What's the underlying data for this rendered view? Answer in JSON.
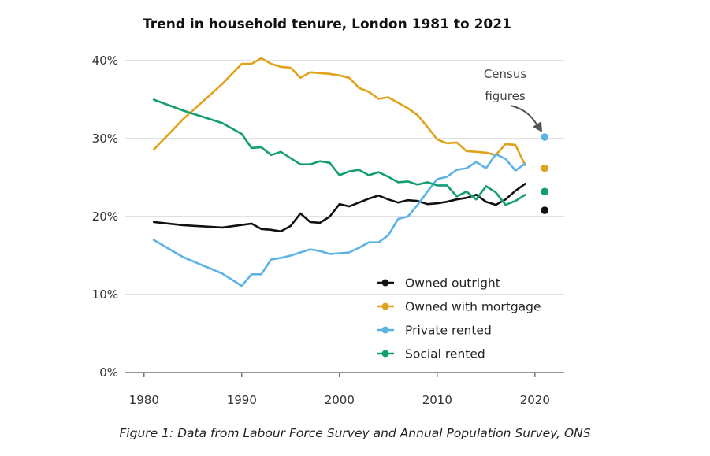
{
  "chart_data": {
    "type": "line",
    "title": "Trend in household tenure, London 1981 to 2021",
    "xlabel": "",
    "ylabel": "",
    "xlim": [
      1978,
      2023
    ],
    "ylim": [
      0,
      40
    ],
    "x_ticks": [
      1980,
      1990,
      2000,
      2010,
      2020
    ],
    "x_tick_labels": [
      "1980",
      "1990",
      "2000",
      "2010",
      "2020"
    ],
    "y_ticks": [
      0,
      10,
      20,
      30,
      40
    ],
    "y_tick_labels": [
      "0%",
      "10%",
      "20%",
      "30%",
      "40%"
    ],
    "grid": "horizontal",
    "legend_position": "bottom-right",
    "annotation": {
      "lines": [
        "Census",
        "figures"
      ],
      "points_to": "census points, 2021"
    },
    "series": [
      {
        "name": "Owned outright",
        "color": "#111111",
        "x": [
          1981,
          1984,
          1988,
          1991,
          1992,
          1993,
          1994,
          1995,
          1996,
          1997,
          1998,
          1999,
          2000,
          2001,
          2002,
          2003,
          2004,
          2005,
          2006,
          2007,
          2008,
          2009,
          2010,
          2011,
          2012,
          2013,
          2014,
          2015,
          2016,
          2017,
          2018,
          2019
        ],
        "y": [
          19.3,
          18.9,
          18.6,
          19.1,
          18.4,
          18.3,
          18.1,
          18.8,
          20.4,
          19.3,
          19.2,
          20.0,
          21.6,
          21.3,
          21.8,
          22.3,
          22.7,
          22.2,
          21.8,
          22.1,
          22.0,
          21.6,
          21.7,
          21.9,
          22.2,
          22.4,
          22.8,
          21.9,
          21.5,
          22.2,
          23.3,
          24.2
        ],
        "census_2021": 20.8
      },
      {
        "name": "Owned with mortgage",
        "color": "#E0A21B",
        "x": [
          1981,
          1984,
          1988,
          1990,
          1991,
          1992,
          1993,
          1994,
          1995,
          1996,
          1997,
          1998,
          1999,
          2000,
          2001,
          2002,
          2003,
          2004,
          2005,
          2006,
          2007,
          2008,
          2009,
          2010,
          2011,
          2012,
          2013,
          2014,
          2015,
          2016,
          2017,
          2018,
          2019
        ],
        "y": [
          28.6,
          32.5,
          37.0,
          39.6,
          39.6,
          40.3,
          39.6,
          39.2,
          39.1,
          37.8,
          38.5,
          38.4,
          38.3,
          38.1,
          37.8,
          36.5,
          36.0,
          35.1,
          35.3,
          34.6,
          33.9,
          33.0,
          31.5,
          29.9,
          29.4,
          29.5,
          28.4,
          28.3,
          28.2,
          27.9,
          29.3,
          29.2,
          26.6
        ],
        "census_2021": 26.2
      },
      {
        "name": "Private rented",
        "color": "#5BB3E4",
        "x": [
          1981,
          1984,
          1988,
          1990,
          1991,
          1992,
          1993,
          1994,
          1995,
          1996,
          1997,
          1998,
          1999,
          2000,
          2001,
          2002,
          2003,
          2004,
          2005,
          2006,
          2007,
          2008,
          2009,
          2010,
          2011,
          2012,
          2013,
          2014,
          2015,
          2016,
          2017,
          2018,
          2019
        ],
        "y": [
          17.0,
          14.8,
          12.7,
          11.1,
          12.6,
          12.6,
          14.5,
          14.7,
          15.0,
          15.4,
          15.8,
          15.6,
          15.2,
          15.3,
          15.4,
          16.0,
          16.7,
          16.7,
          17.6,
          19.7,
          20.0,
          21.5,
          23.2,
          24.8,
          25.1,
          26.0,
          26.2,
          27.0,
          26.2,
          28.0,
          27.4,
          25.9,
          26.8
        ],
        "census_2021": 30.2
      },
      {
        "name": "Social rented",
        "color": "#139D72",
        "x": [
          1981,
          1984,
          1988,
          1990,
          1991,
          1992,
          1993,
          1994,
          1995,
          1996,
          1997,
          1998,
          1999,
          2000,
          2001,
          2002,
          2003,
          2004,
          2005,
          2006,
          2007,
          2008,
          2009,
          2010,
          2011,
          2012,
          2013,
          2014,
          2015,
          2016,
          2017,
          2018,
          2019
        ],
        "y": [
          35.0,
          33.6,
          32.0,
          30.6,
          28.8,
          28.9,
          27.9,
          28.3,
          27.5,
          26.7,
          26.7,
          27.1,
          26.9,
          25.3,
          25.8,
          26.0,
          25.3,
          25.7,
          25.1,
          24.4,
          24.5,
          24.1,
          24.4,
          24.0,
          24.0,
          22.6,
          23.2,
          22.2,
          23.9,
          23.1,
          21.5,
          22.0,
          22.8
        ],
        "census_2021": 23.2
      }
    ]
  },
  "caption": "Figure 1: Data from Labour Force Survey and Annual Population Survey, ONS"
}
